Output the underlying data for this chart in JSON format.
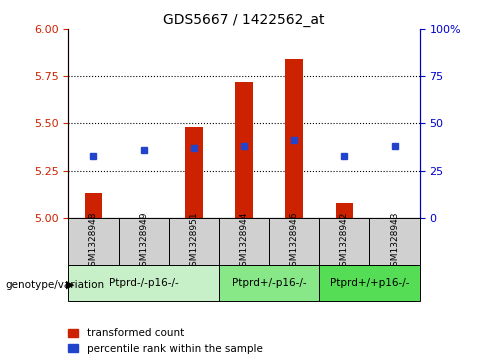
{
  "title": "GDS5667 / 1422562_at",
  "samples": [
    "GSM1328948",
    "GSM1328949",
    "GSM1328951",
    "GSM1328944",
    "GSM1328946",
    "GSM1328942",
    "GSM1328943"
  ],
  "red_values": [
    5.13,
    5.0,
    5.48,
    5.72,
    5.84,
    5.08,
    5.0
  ],
  "blue_values": [
    5.33,
    5.36,
    5.37,
    5.38,
    5.41,
    5.33,
    5.38
  ],
  "ylim_left": [
    5.0,
    6.0
  ],
  "ylim_right": [
    0,
    100
  ],
  "yticks_left": [
    5.0,
    5.25,
    5.5,
    5.75,
    6.0
  ],
  "yticks_right": [
    0,
    25,
    50,
    75,
    100
  ],
  "groups": [
    {
      "label": "Ptprd-/-p16-/-",
      "start": 0,
      "end": 3,
      "color": "#c8f0c8"
    },
    {
      "label": "Ptprd+/-p16-/-",
      "start": 3,
      "end": 5,
      "color": "#88e888"
    },
    {
      "label": "Ptprd+/+p16-/-",
      "start": 5,
      "end": 7,
      "color": "#55dd55"
    }
  ],
  "bar_width": 0.35,
  "red_color": "#cc2200",
  "blue_color": "#2244cc",
  "bg_color": "#ffffff",
  "genotype_label": "genotype/variation",
  "legend_red": "transformed count",
  "legend_blue": "percentile rank within the sample",
  "bar_base": 5.0,
  "right_axis_color": "#0000cc",
  "left_axis_color": "#cc2200",
  "grid_yticks": [
    5.25,
    5.5,
    5.75
  ],
  "sample_box_color": "#d0d0d0"
}
